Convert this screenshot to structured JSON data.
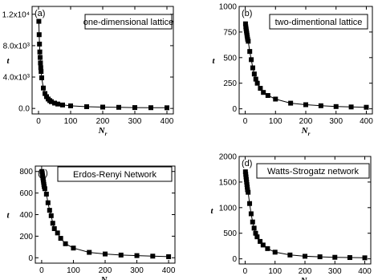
{
  "chart_data": [
    {
      "type": "line",
      "panel_label": "(a)",
      "title": "one-dimensional lattice",
      "xlabel": "N",
      "xlabel_sub": "r",
      "ylabel": "t",
      "xlim": [
        -20,
        420
      ],
      "ylim": [
        -700,
        13000
      ],
      "xticks": [
        0,
        100,
        200,
        300,
        400
      ],
      "yticks": [
        0,
        4000,
        8000,
        12000
      ],
      "ytick_labels": [
        "0.0",
        "4.0x10³",
        "8.0x10³",
        "1.2x10⁴"
      ],
      "legend_position": "top-right",
      "grid": false,
      "series": [
        {
          "x": [
            1,
            2,
            3,
            4,
            5,
            6,
            7,
            8,
            10,
            15,
            20,
            25,
            30,
            35,
            40,
            50,
            60,
            75,
            100,
            150,
            200,
            250,
            300,
            350,
            400
          ],
          "y": [
            11100,
            9400,
            8200,
            7200,
            6500,
            5800,
            5200,
            4700,
            3900,
            2600,
            1900,
            1500,
            1200,
            1000,
            860,
            680,
            560,
            440,
            330,
            220,
            170,
            140,
            110,
            95,
            85
          ]
        }
      ]
    },
    {
      "type": "line",
      "panel_label": "(b)",
      "title": "two-dimentional lattice",
      "xlabel": "N",
      "xlabel_sub": "r",
      "ylabel": "t",
      "xlim": [
        -20,
        420
      ],
      "ylim": [
        -50,
        1000
      ],
      "xticks": [
        0,
        100,
        200,
        300,
        400
      ],
      "yticks": [
        0,
        250,
        500,
        750,
        1000
      ],
      "ytick_labels": [
        "0",
        "250",
        "500",
        "750",
        "1000"
      ],
      "legend_position": "top-right",
      "grid": false,
      "series": [
        {
          "x": [
            1,
            2,
            3,
            4,
            5,
            6,
            7,
            8,
            10,
            15,
            20,
            25,
            30,
            35,
            40,
            50,
            60,
            75,
            100,
            150,
            200,
            250,
            300,
            350,
            400
          ],
          "y": [
            830,
            800,
            780,
            760,
            740,
            720,
            700,
            680,
            660,
            560,
            480,
            400,
            340,
            290,
            250,
            200,
            160,
            130,
            95,
            55,
            40,
            30,
            22,
            18,
            15
          ]
        }
      ]
    },
    {
      "type": "line",
      "panel_label": "(c)",
      "title": "Erdos-Renyi Network",
      "xlabel": "N",
      "xlabel_sub": "r",
      "ylabel": "t",
      "xlim": [
        -20,
        420
      ],
      "ylim": [
        -50,
        850
      ],
      "xticks": [
        0,
        100,
        200,
        300,
        400
      ],
      "yticks": [
        0,
        200,
        400,
        600,
        800
      ],
      "ytick_labels": [
        "0",
        "200",
        "400",
        "600",
        "800"
      ],
      "legend_position": "top-right",
      "grid": false,
      "series": [
        {
          "x": [
            1,
            2,
            3,
            4,
            5,
            6,
            7,
            8,
            10,
            15,
            20,
            25,
            30,
            35,
            40,
            50,
            60,
            75,
            100,
            150,
            200,
            250,
            300,
            350,
            400
          ],
          "y": [
            800,
            780,
            760,
            740,
            720,
            700,
            680,
            660,
            640,
            590,
            510,
            440,
            390,
            320,
            270,
            230,
            180,
            130,
            90,
            50,
            35,
            25,
            20,
            15,
            10
          ]
        }
      ]
    },
    {
      "type": "line",
      "panel_label": "(d)",
      "title": "Watts-Strogatz network",
      "xlabel": "N",
      "xlabel_sub": "r",
      "ylabel": "t",
      "xlim": [
        -20,
        420
      ],
      "ylim": [
        -100,
        2000
      ],
      "xticks": [
        0,
        100,
        200,
        300,
        400
      ],
      "yticks": [
        0,
        500,
        1000,
        1500,
        2000
      ],
      "ytick_labels": [
        "0",
        "500",
        "1000",
        "1500",
        "2000"
      ],
      "legend_position": "top-right",
      "grid": false,
      "series": [
        {
          "x": [
            1,
            2,
            3,
            4,
            5,
            6,
            7,
            8,
            10,
            15,
            20,
            25,
            30,
            35,
            40,
            50,
            60,
            75,
            100,
            150,
            200,
            250,
            300,
            350,
            400
          ],
          "y": [
            1700,
            1650,
            1600,
            1550,
            1500,
            1450,
            1400,
            1350,
            1300,
            1080,
            880,
            720,
            600,
            500,
            430,
            340,
            270,
            200,
            130,
            75,
            50,
            40,
            30,
            25,
            20
          ]
        }
      ]
    }
  ]
}
